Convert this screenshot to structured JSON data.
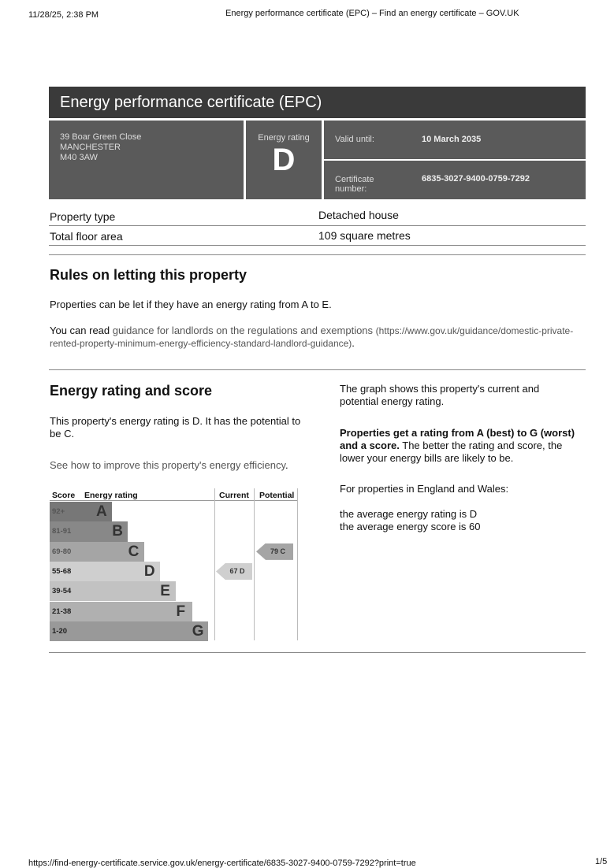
{
  "print_header": {
    "datetime": "11/28/25, 2:38 PM",
    "title": "Energy performance certificate (EPC) – Find an energy certificate – GOV.UK"
  },
  "certificate": {
    "title": "Energy performance certificate (EPC)",
    "address": [
      "39 Boar Green Close",
      "MANCHESTER",
      "M40 3AW"
    ],
    "rating_label": "Energy rating",
    "rating": "D",
    "valid_label": "Valid until:",
    "valid_value": "10 March 2035",
    "cert_label": "Certificate number:",
    "cert_value": "6835-3027-9400-0759-7292"
  },
  "property": [
    {
      "label": "Property type",
      "value": "Detached house"
    },
    {
      "label": "Total floor area",
      "value": "109 square metres"
    }
  ],
  "letting": {
    "heading": "Rules on letting this property",
    "text": "Properties can be let if they have an energy rating from A to E.",
    "read_prefix": "You can read ",
    "link": "guidance for landlords on the regulations and exemptions",
    "link_url": "(https://www.gov.uk/guidance/domestic-private-rented-property-minimum-energy-efficiency-standard-landlord-guidance)",
    "suffix": "."
  },
  "rating": {
    "heading": "Energy rating and score",
    "text": "This property's energy rating is D. It has the potential to be C.",
    "link": "See how to improve this property's energy efficiency",
    "link_suffix": ".",
    "graph_text": "The graph shows this property's current and potential energy rating.",
    "bold_text": "Properties get a rating from A (best) to G (worst) and a score.",
    "after_bold": " The better the rating and score, the lower your energy bills are likely to be.",
    "avg_intro": "For properties in England and Wales:",
    "avg_rating": "the average energy rating is D",
    "avg_score": "the average energy score is 60"
  },
  "chart_data": {
    "type": "table",
    "headers": [
      "Score",
      "Energy rating",
      "Current",
      "Potential"
    ],
    "bands": [
      {
        "score": "92+",
        "letter": "A",
        "color": "#777777"
      },
      {
        "score": "81-91",
        "letter": "B",
        "color": "#888888"
      },
      {
        "score": "69-80",
        "letter": "C",
        "color": "#a5a5a5"
      },
      {
        "score": "55-68",
        "letter": "D",
        "color": "#cfcfcf"
      },
      {
        "score": "39-54",
        "letter": "E",
        "color": "#c2c2c2"
      },
      {
        "score": "21-38",
        "letter": "F",
        "color": "#b0b0b0"
      },
      {
        "score": "1-20",
        "letter": "G",
        "color": "#999999"
      }
    ],
    "current": {
      "score": 67,
      "letter": "D",
      "label": "67 D"
    },
    "potential": {
      "score": 79,
      "letter": "C",
      "label": "79 C"
    }
  },
  "footer": {
    "url": "https://find-energy-certificate.service.gov.uk/energy-certificate/6835-3027-9400-0759-7292?print=true",
    "page": "1/5"
  }
}
